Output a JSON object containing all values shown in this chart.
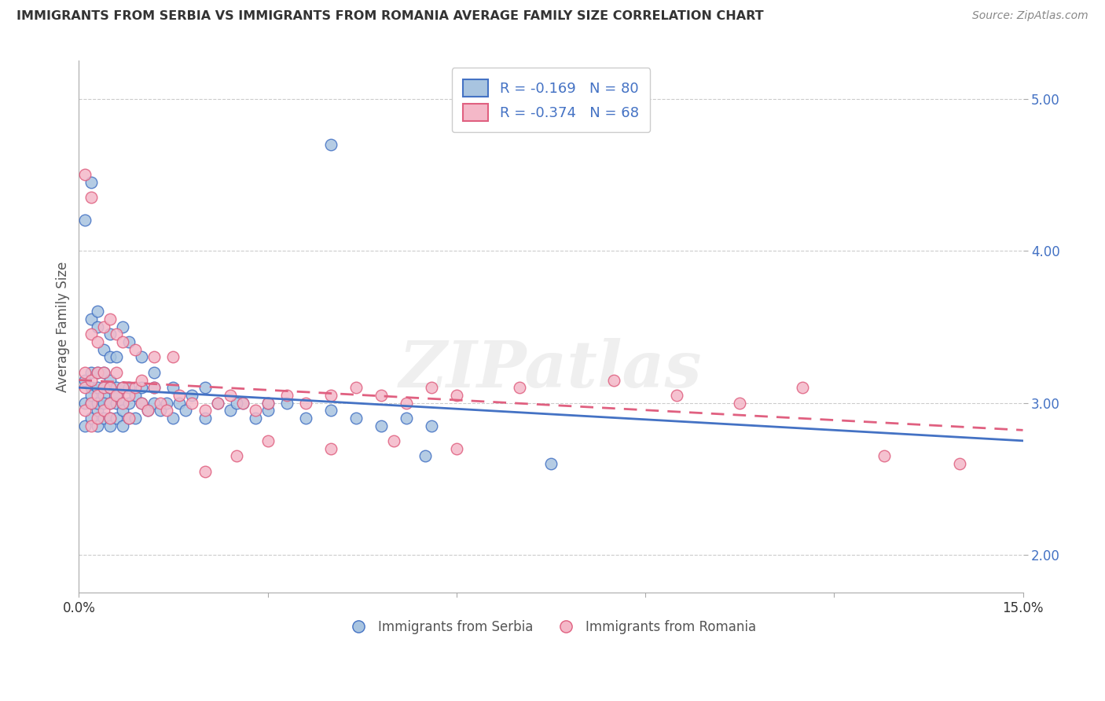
{
  "title": "IMMIGRANTS FROM SERBIA VS IMMIGRANTS FROM ROMANIA AVERAGE FAMILY SIZE CORRELATION CHART",
  "source": "Source: ZipAtlas.com",
  "ylabel": "Average Family Size",
  "serbia_R": -0.169,
  "serbia_N": 80,
  "romania_R": -0.374,
  "romania_N": 68,
  "serbia_color": "#a8c4e0",
  "serbia_line_color": "#4472c4",
  "romania_color": "#f4b8c8",
  "romania_line_color": "#e06080",
  "xlim": [
    0.0,
    0.15
  ],
  "ylim": [
    1.75,
    5.25
  ],
  "yticks": [
    2.0,
    3.0,
    4.0,
    5.0
  ],
  "xticks": [
    0.0,
    0.03,
    0.06,
    0.09,
    0.12,
    0.15
  ],
  "xticklabels": [
    "0.0%",
    "",
    "",
    "",
    "",
    "15.0%"
  ],
  "watermark": "ZIPatlas",
  "legend_label_serbia": "Immigrants from Serbia",
  "legend_label_romania": "Immigrants from Romania",
  "serbia_x": [
    0.001,
    0.001,
    0.001,
    0.002,
    0.002,
    0.002,
    0.002,
    0.002,
    0.003,
    0.003,
    0.003,
    0.003,
    0.003,
    0.004,
    0.004,
    0.004,
    0.004,
    0.004,
    0.005,
    0.005,
    0.005,
    0.005,
    0.005,
    0.006,
    0.006,
    0.006,
    0.006,
    0.007,
    0.007,
    0.007,
    0.007,
    0.008,
    0.008,
    0.008,
    0.009,
    0.009,
    0.01,
    0.01,
    0.011,
    0.012,
    0.012,
    0.013,
    0.014,
    0.015,
    0.016,
    0.017,
    0.018,
    0.02,
    0.022,
    0.024,
    0.026,
    0.028,
    0.03,
    0.033,
    0.036,
    0.04,
    0.044,
    0.048,
    0.052,
    0.056,
    0.001,
    0.002,
    0.002,
    0.003,
    0.003,
    0.004,
    0.005,
    0.005,
    0.006,
    0.007,
    0.008,
    0.01,
    0.012,
    0.015,
    0.02,
    0.025,
    0.03,
    0.04,
    0.055,
    0.075
  ],
  "serbia_y": [
    3.0,
    3.15,
    2.85,
    3.1,
    3.0,
    2.9,
    3.2,
    3.05,
    3.1,
    2.95,
    3.2,
    2.85,
    3.0,
    3.1,
    2.9,
    3.05,
    3.2,
    3.0,
    3.15,
    2.9,
    3.0,
    3.1,
    2.85,
    3.0,
    3.1,
    2.9,
    3.05,
    3.0,
    2.95,
    3.1,
    2.85,
    3.0,
    3.1,
    2.9,
    3.05,
    2.9,
    3.0,
    3.1,
    2.95,
    3.0,
    3.1,
    2.95,
    3.0,
    2.9,
    3.0,
    2.95,
    3.05,
    2.9,
    3.0,
    2.95,
    3.0,
    2.9,
    2.95,
    3.0,
    2.9,
    2.95,
    2.9,
    2.85,
    2.9,
    2.85,
    4.2,
    4.45,
    3.55,
    3.5,
    3.6,
    3.35,
    3.3,
    3.45,
    3.3,
    3.5,
    3.4,
    3.3,
    3.2,
    3.1,
    3.1,
    3.0,
    3.0,
    4.7,
    2.65,
    2.6
  ],
  "romania_x": [
    0.001,
    0.001,
    0.001,
    0.002,
    0.002,
    0.002,
    0.003,
    0.003,
    0.003,
    0.004,
    0.004,
    0.004,
    0.005,
    0.005,
    0.005,
    0.006,
    0.006,
    0.007,
    0.007,
    0.008,
    0.008,
    0.009,
    0.01,
    0.01,
    0.011,
    0.012,
    0.013,
    0.014,
    0.016,
    0.018,
    0.02,
    0.022,
    0.024,
    0.026,
    0.028,
    0.03,
    0.033,
    0.036,
    0.04,
    0.044,
    0.048,
    0.052,
    0.056,
    0.06,
    0.001,
    0.002,
    0.002,
    0.003,
    0.004,
    0.005,
    0.006,
    0.007,
    0.009,
    0.012,
    0.015,
    0.02,
    0.025,
    0.03,
    0.04,
    0.05,
    0.06,
    0.07,
    0.085,
    0.095,
    0.105,
    0.115,
    0.128,
    0.14
  ],
  "romania_y": [
    3.1,
    3.2,
    2.95,
    3.0,
    3.15,
    2.85,
    3.05,
    3.2,
    2.9,
    3.1,
    2.95,
    3.2,
    3.0,
    3.1,
    2.9,
    3.05,
    3.2,
    3.0,
    3.1,
    3.05,
    2.9,
    3.1,
    3.0,
    3.15,
    2.95,
    3.1,
    3.0,
    2.95,
    3.05,
    3.0,
    2.95,
    3.0,
    3.05,
    3.0,
    2.95,
    3.0,
    3.05,
    3.0,
    3.05,
    3.1,
    3.05,
    3.0,
    3.1,
    3.05,
    4.5,
    4.35,
    3.45,
    3.4,
    3.5,
    3.55,
    3.45,
    3.4,
    3.35,
    3.3,
    3.3,
    2.55,
    2.65,
    2.75,
    2.7,
    2.75,
    2.7,
    3.1,
    3.15,
    3.05,
    3.0,
    3.1,
    2.65,
    2.6
  ]
}
